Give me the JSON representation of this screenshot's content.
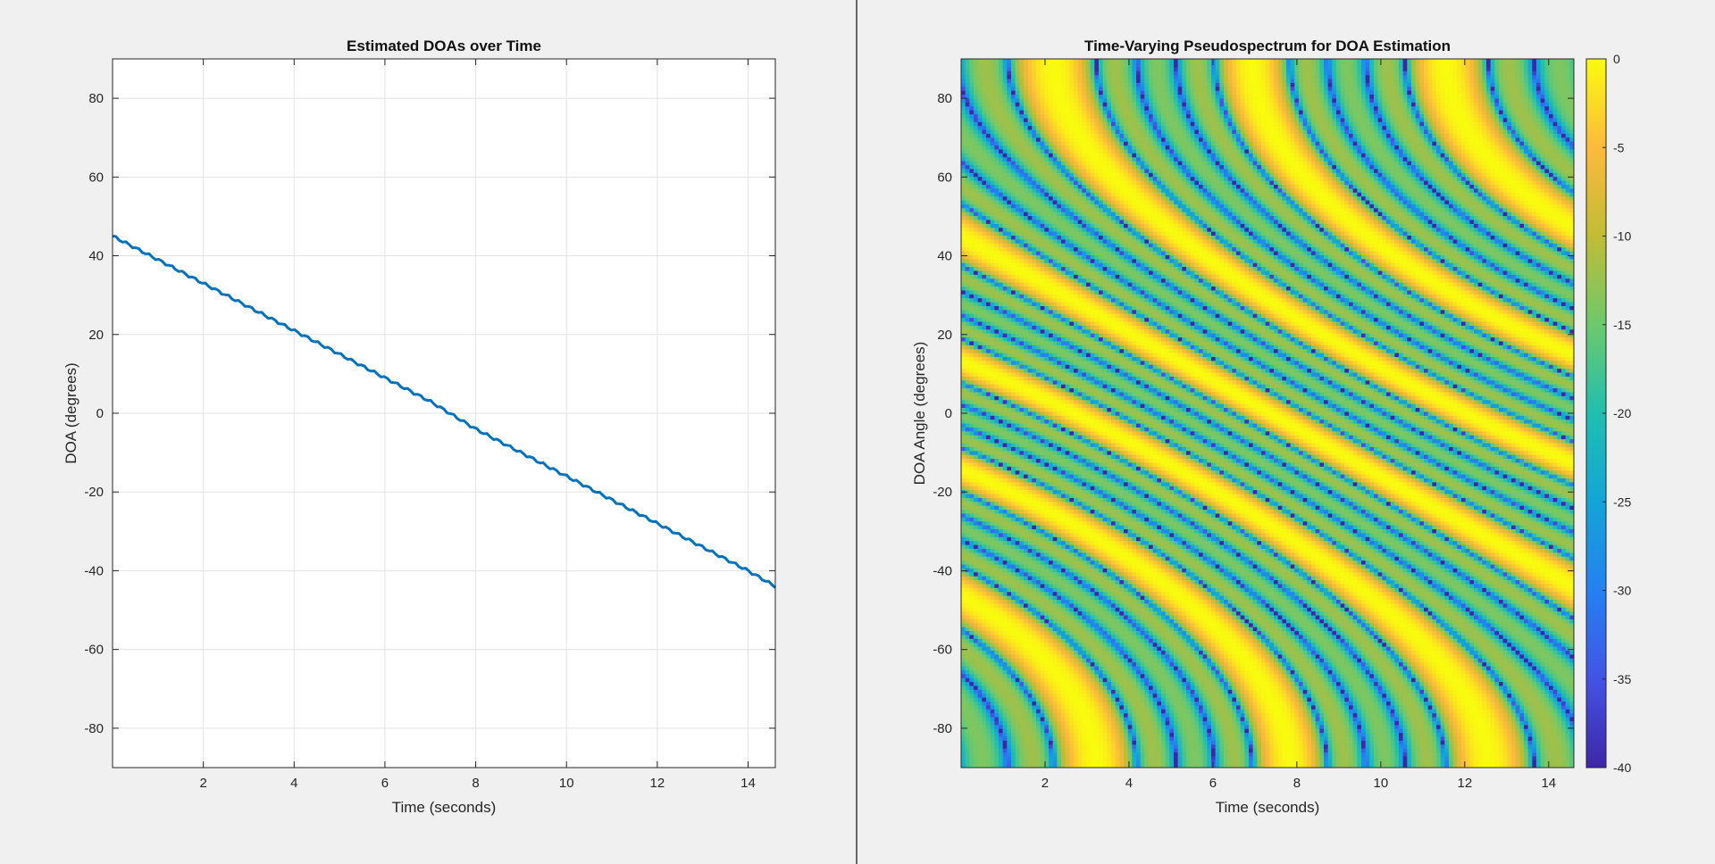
{
  "chart_data": [
    {
      "type": "line",
      "title": "Estimated DOAs over Time",
      "xlabel": "Time (seconds)",
      "ylabel": "DOA (degrees)",
      "xlim": [
        0,
        14.6
      ],
      "ylim": [
        -90,
        90
      ],
      "xticks": [
        "2",
        "4",
        "6",
        "8",
        "10",
        "12",
        "14"
      ],
      "yticks": [
        "80",
        "60",
        "40",
        "20",
        "0",
        "-20",
        "-40",
        "-60",
        "-80"
      ],
      "grid": true,
      "line_color": "#0072bd",
      "series": [
        {
          "x": [
            0,
            1,
            2,
            3,
            4,
            5,
            6,
            7,
            8,
            9,
            10,
            11,
            12,
            13,
            14,
            14.6
          ],
          "values": [
            45,
            39,
            33,
            27,
            21,
            15,
            9,
            3,
            -4,
            -10,
            -16,
            -22,
            -28,
            -34,
            -40,
            -44
          ]
        }
      ]
    },
    {
      "type": "heatmap",
      "title": "Time-Varying Pseudospectrum for DOA Estimation",
      "xlabel": "Time (seconds)",
      "ylabel": "DOA Angle (degrees)",
      "xlim": [
        0,
        14.6
      ],
      "ylim": [
        -90,
        90
      ],
      "xticks": [
        "2",
        "4",
        "6",
        "8",
        "10",
        "12",
        "14"
      ],
      "yticks": [
        "80",
        "60",
        "40",
        "20",
        "0",
        "-20",
        "-40",
        "-60",
        "-80"
      ],
      "colormap": "parula",
      "colorbar": {
        "range": [
          -40,
          0
        ],
        "ticks": [
          "0",
          "-5",
          "-10",
          "-15",
          "-20",
          "-25",
          "-30",
          "-35",
          "-40"
        ]
      },
      "peak_track": {
        "x": [
          0,
          14.6
        ],
        "values": [
          45,
          -44
        ]
      }
    }
  ]
}
